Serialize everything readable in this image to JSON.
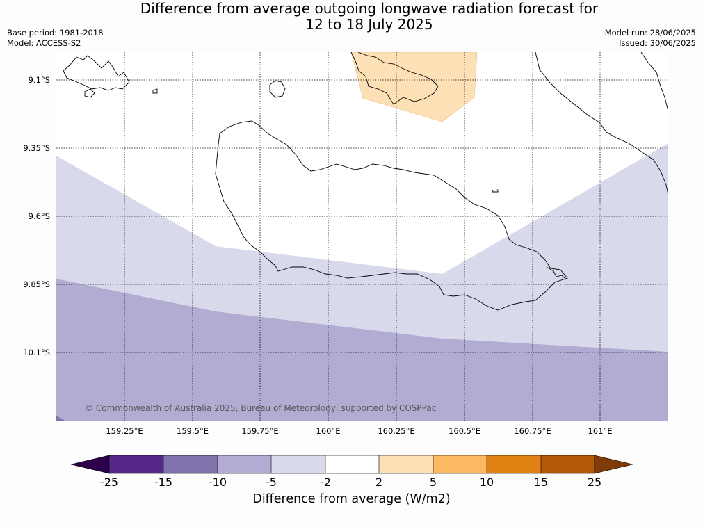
{
  "title": {
    "line1": "Difference from average outgoing longwave radiation forecast for",
    "line2": "12 to 18 July 2025"
  },
  "meta": {
    "base_period": "Base period: 1981-2018",
    "model": "Model: ACCESS-S2",
    "model_run": "Model run: 28/06/2025",
    "issued": "Issued: 30/06/2025"
  },
  "map": {
    "lat_labels": [
      "9.1°S",
      "9.35°S",
      "9.6°S",
      "9.85°S",
      "10.1°S"
    ],
    "lon_labels": [
      "159.25°E",
      "159.5°E",
      "159.75°E",
      "160°E",
      "160.25°E",
      "160.5°E",
      "160.75°E",
      "161°E"
    ],
    "copyright": "© Commonwealth of Australia 2025, Bureau of Meteorology, supported by COSPPac"
  },
  "colorbar": {
    "ticks": [
      "-25",
      "-15",
      "-10",
      "-5",
      "-2",
      "2",
      "5",
      "10",
      "15",
      "25"
    ],
    "colors": {
      "below": "#2d004b",
      "bins": [
        "#542788",
        "#8073ac",
        "#b2abd2",
        "#d8daeb",
        "#ffffff",
        "#fee0b6",
        "#fdb863",
        "#e08214",
        "#b35806"
      ],
      "above": "#7f3b08"
    },
    "label": "Difference from average (W/m2)"
  }
}
